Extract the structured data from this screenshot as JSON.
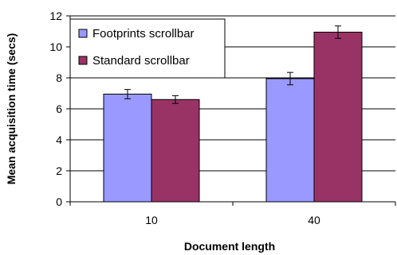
{
  "chart_data": {
    "type": "bar",
    "xlabel": "Document length",
    "ylabel": "Mean acquisition time (secs)",
    "categories": [
      "10",
      "40"
    ],
    "ylim": [
      0,
      12
    ],
    "yticks": [
      0,
      2,
      4,
      6,
      8,
      10,
      12
    ],
    "grid": true,
    "legend_position": "top-left",
    "series": [
      {
        "name": "Footprints scrollbar",
        "color": "#9999ff",
        "values": [
          6.95,
          7.95
        ],
        "errors": [
          0.3,
          0.4
        ]
      },
      {
        "name": "Standard scrollbar",
        "color": "#993366",
        "values": [
          6.6,
          10.95
        ],
        "errors": [
          0.25,
          0.4
        ]
      }
    ]
  }
}
